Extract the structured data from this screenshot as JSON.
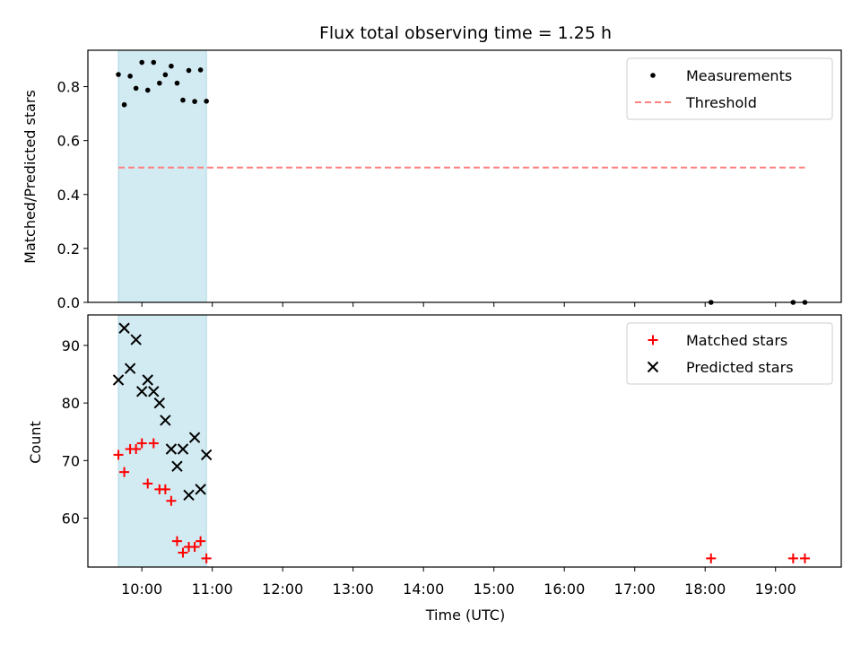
{
  "chart_data": [
    {
      "type": "scatter",
      "title": "Flux total observing time = 1.25 h",
      "ylabel": "Matched/Predicted stars",
      "xlabel": "",
      "xlim": [
        "09:14",
        "19:56"
      ],
      "ylim": [
        0.0,
        0.935
      ],
      "yticks": [
        0.0,
        0.2,
        0.4,
        0.6,
        0.8
      ],
      "ytick_labels": [
        "0.0",
        "0.2",
        "0.4",
        "0.6",
        "0.8"
      ],
      "grid": false,
      "legend_position": "top-right",
      "shaded_span": {
        "from": "09:40",
        "to": "10:55",
        "color": "#add8e6"
      },
      "series": [
        {
          "name": "Measurements",
          "marker": "dot",
          "color": "#000000",
          "x": [
            "09:40",
            "09:45",
            "09:50",
            "09:55",
            "10:00",
            "10:05",
            "10:10",
            "10:15",
            "10:20",
            "10:25",
            "10:30",
            "10:35",
            "10:40",
            "10:45",
            "10:50",
            "10:55",
            "18:05",
            "19:15",
            "19:25"
          ],
          "y": [
            0.845,
            0.733,
            0.839,
            0.794,
            0.89,
            0.787,
            0.89,
            0.813,
            0.844,
            0.876,
            0.813,
            0.75,
            0.86,
            0.745,
            0.862,
            0.746,
            0.0,
            0.0,
            0.0
          ]
        },
        {
          "name": "Threshold",
          "line": "dashed",
          "color": "#ff7f7f",
          "x": [
            "09:40",
            "19:25"
          ],
          "y": [
            0.5,
            0.5
          ]
        }
      ]
    },
    {
      "type": "scatter",
      "title": "",
      "ylabel": "Count",
      "xlabel": "Time (UTC)",
      "xlim": [
        "09:14",
        "19:56"
      ],
      "ylim": [
        51.5,
        95.3
      ],
      "yticks": [
        60,
        70,
        80,
        90
      ],
      "ytick_labels": [
        "60",
        "70",
        "80",
        "90"
      ],
      "xticks": [
        "10:00",
        "11:00",
        "12:00",
        "13:00",
        "14:00",
        "15:00",
        "16:00",
        "17:00",
        "18:00",
        "19:00"
      ],
      "grid": false,
      "legend_position": "top-right",
      "shaded_span": {
        "from": "09:40",
        "to": "10:55",
        "color": "#add8e6"
      },
      "series": [
        {
          "name": "Matched stars",
          "marker": "plus",
          "color": "#ff0000",
          "x": [
            "09:40",
            "09:45",
            "09:50",
            "09:55",
            "10:00",
            "10:05",
            "10:10",
            "10:15",
            "10:20",
            "10:25",
            "10:30",
            "10:35",
            "10:40",
            "10:45",
            "10:50",
            "10:55",
            "18:05",
            "19:15",
            "19:25"
          ],
          "y": [
            71,
            68,
            72,
            72,
            73,
            66,
            73,
            65,
            65,
            63,
            56,
            54,
            55,
            55,
            56,
            53,
            53,
            53,
            53
          ]
        },
        {
          "name": "Predicted stars",
          "marker": "x",
          "color": "#000000",
          "x": [
            "09:40",
            "09:45",
            "09:50",
            "09:55",
            "10:00",
            "10:05",
            "10:10",
            "10:15",
            "10:20",
            "10:25",
            "10:30",
            "10:35",
            "10:40",
            "10:45",
            "10:50",
            "10:55"
          ],
          "y": [
            84,
            93,
            86,
            91,
            82,
            84,
            82,
            80,
            77,
            72,
            69,
            72,
            64,
            74,
            65,
            71
          ]
        }
      ]
    }
  ]
}
